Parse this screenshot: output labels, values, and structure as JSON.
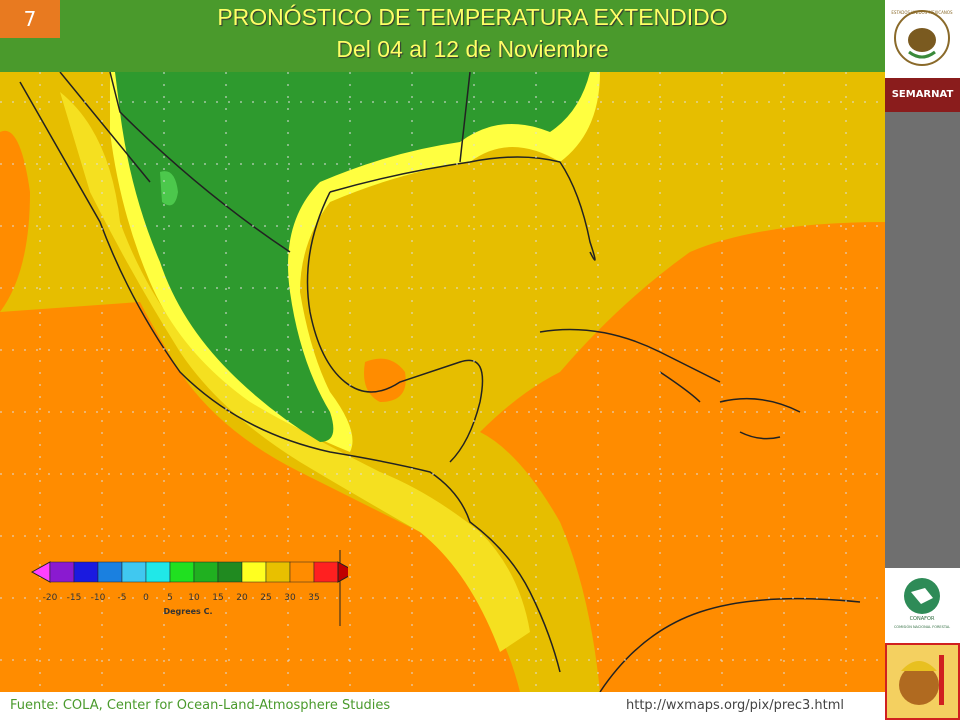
{
  "slide_number": "7",
  "header": {
    "title": "PRONÓSTICO DE TEMPERATURA EXTENDIDO",
    "subtitle": "Del 04 al 12 de Noviembre"
  },
  "sidebar": {
    "seal_text": "ESTADOS UNIDOS MEXICANOS",
    "agency": "SEMARNAT",
    "conafor": "CONAFOR",
    "conafor_full": "COMISIÓN NACIONAL FORESTAL"
  },
  "legend": {
    "labels": [
      "-20",
      "-15",
      "-10",
      "-5",
      "0",
      "5",
      "10",
      "15",
      "20",
      "25",
      "30",
      "35"
    ],
    "unit": "Degrees C."
  },
  "footer": {
    "source": "Fuente: COLA, Center  for Ocean-Land-Atmosphere Studies",
    "url": "http://wxmaps.org/pix/prec3.html"
  }
}
